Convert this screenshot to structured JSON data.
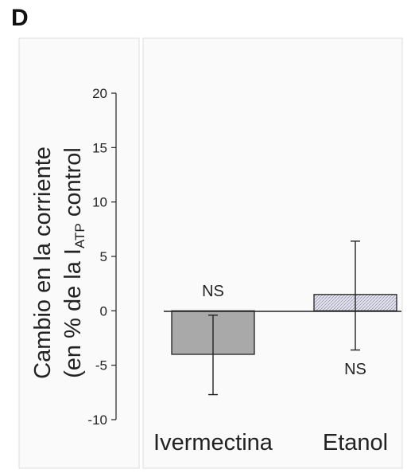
{
  "panel_label": "D",
  "chart_data": {
    "type": "bar",
    "title": "",
    "ylabel_line1": "Cambio en la corriente",
    "ylabel_line2_prefix": "(en % de la I",
    "ylabel_line2_subscript": "ATP",
    "ylabel_line2_suffix": " control",
    "ylim": [
      -10,
      20
    ],
    "yticks": [
      "20",
      "15",
      "10",
      "5",
      "0",
      "-5",
      "-10"
    ],
    "categories": [
      "Ivermectina",
      "Etanol"
    ],
    "values": [
      -4.0,
      1.5
    ],
    "error_upper": [
      -0.4,
      6.4
    ],
    "error_lower": [
      -7.7,
      -3.6
    ],
    "annotations": [
      "NS",
      "NS"
    ],
    "bar_colors": [
      "#a9a9a9",
      "#dcdcea"
    ],
    "grid": false
  }
}
